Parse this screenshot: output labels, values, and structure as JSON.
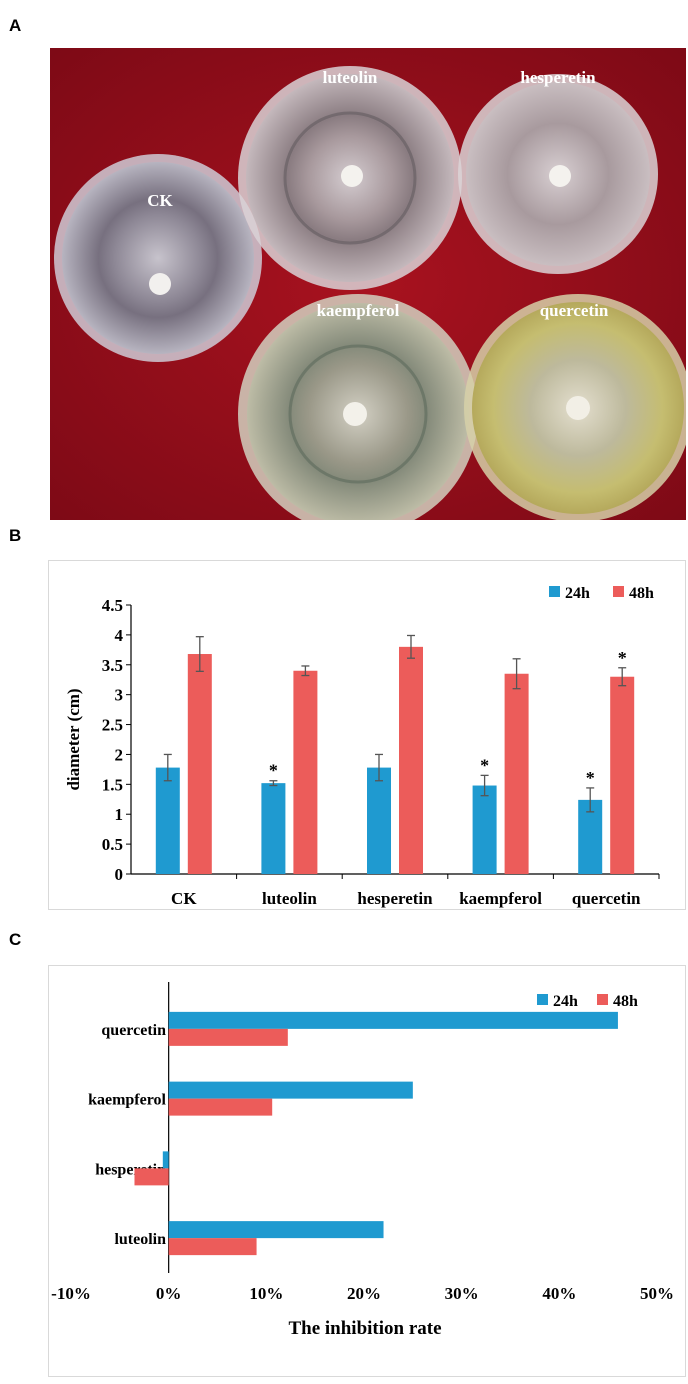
{
  "panels": {
    "a": {
      "letter": "A"
    },
    "b": {
      "letter": "B"
    },
    "c": {
      "letter": "C"
    }
  },
  "photo": {
    "plate_labels": [
      "CK",
      "luteolin",
      "hesperetin",
      "kaempferol",
      "quercetin"
    ],
    "colors": {
      "background": "#a0101e",
      "plate_ck": "#8a8690",
      "plate_luteolin": "#9a8c90",
      "plate_hesperetin": "#a3969a",
      "plate_kaempferol": "#9a9a88",
      "plate_quercetin": "#b8b078"
    }
  },
  "chart_data": [
    {
      "type": "bar",
      "categories": [
        "CK",
        "luteolin",
        "hesperetin",
        "kaempferol",
        "quercetin"
      ],
      "series": [
        {
          "name": "24h",
          "color": "#1f9ad0",
          "values": [
            1.78,
            1.52,
            1.78,
            1.48,
            1.24
          ],
          "errors": [
            0.22,
            0.04,
            0.22,
            0.17,
            0.2
          ],
          "significant": [
            false,
            true,
            false,
            true,
            true
          ]
        },
        {
          "name": "48h",
          "color": "#ec5c5a",
          "values": [
            3.68,
            3.4,
            3.8,
            3.35,
            3.3
          ],
          "errors": [
            0.29,
            0.08,
            0.19,
            0.25,
            0.15
          ],
          "significant": [
            false,
            false,
            false,
            false,
            true
          ]
        }
      ],
      "significance_mark": "*",
      "ylabel": "diameter (cm)",
      "xlabel": "",
      "ylim": [
        0,
        4.5
      ],
      "yticks": [
        "0",
        "0.5",
        "1",
        "1.5",
        "2",
        "2.5",
        "3",
        "3.5",
        "4",
        "4.5"
      ],
      "legend": "top-right",
      "grid": false
    },
    {
      "type": "bar",
      "orientation": "horizontal",
      "categories": [
        "quercetin",
        "kaempferol",
        "hesperetin",
        "luteolin"
      ],
      "series": [
        {
          "name": "24h",
          "color": "#1f9ad0",
          "values": [
            46,
            25,
            -0.6,
            22
          ]
        },
        {
          "name": "48h",
          "color": "#ec5c5a",
          "values": [
            12.2,
            10.6,
            -3.5,
            9
          ]
        }
      ],
      "xlabel": "The inhibition rate",
      "ylabel": "",
      "xlim": [
        -10,
        50
      ],
      "xticks": [
        "-10%",
        "0%",
        "10%",
        "20%",
        "30%",
        "40%",
        "50%"
      ],
      "legend": "top-right",
      "grid": false
    }
  ]
}
